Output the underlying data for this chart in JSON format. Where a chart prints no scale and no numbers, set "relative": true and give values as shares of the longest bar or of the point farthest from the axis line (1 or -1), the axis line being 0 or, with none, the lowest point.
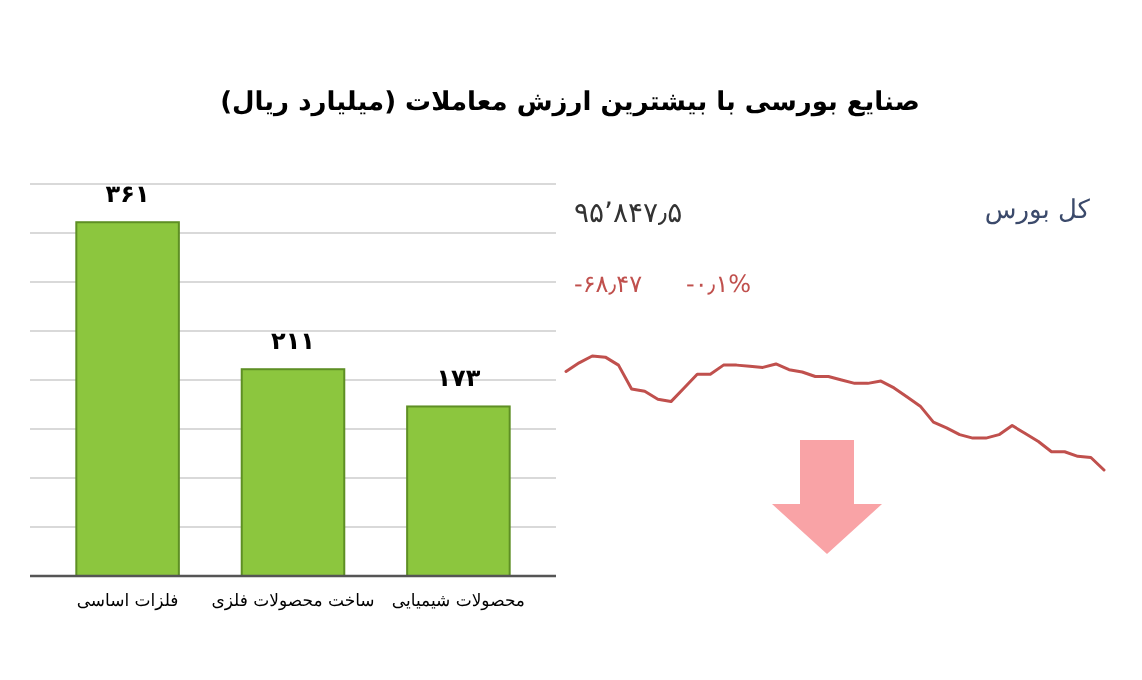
{
  "chart_data": [
    {
      "type": "bar",
      "title": "صنایع بورسی با بیشترین ارزش معاملات  (میلیارد ریال)",
      "categories": [
        "فلزات اساسی",
        "ساخت محصولات فلزی",
        "محصولات شیمیایی"
      ],
      "values": [
        361,
        211,
        173
      ],
      "value_labels": [
        "۳۶۱",
        "۲۱۱",
        "۱۷۳"
      ],
      "color": "#8cc63e",
      "ylim": [
        0,
        400
      ],
      "yticks": [
        {
          "value": 0,
          "label": null
        },
        {
          "value": 50,
          "label": null
        },
        {
          "value": 100,
          "label": null
        },
        {
          "value": 150,
          "label": null
        },
        {
          "value": 200,
          "label": null
        },
        {
          "value": 250,
          "label": null
        },
        {
          "value": 300,
          "label": null
        },
        {
          "value": 350,
          "label": null
        },
        {
          "value": 400,
          "label": null
        }
      ],
      "grid": "y",
      "tick_labels": "x"
    },
    {
      "type": "line",
      "title": "کل بورس",
      "annotations": [
        "۹۵٬۸۴۷٫۵",
        "-۶۸٫۴۷",
        "-۰٫۱%"
      ],
      "relative": true,
      "categories": [
        null,
        null,
        null,
        null,
        null,
        null,
        null,
        null,
        null,
        null,
        null,
        null,
        null,
        null,
        null,
        null,
        null,
        null,
        null,
        null,
        null,
        null,
        null,
        null,
        null,
        null,
        null,
        null,
        null,
        null,
        null,
        null,
        null,
        null,
        null,
        null,
        null,
        null,
        null,
        null,
        null,
        null
      ],
      "color": "#c0504d",
      "values": [
        0.865,
        0.94,
        1,
        0.99,
        0.92,
        0.71,
        0.69,
        0.62,
        0.6,
        0.72,
        0.84,
        0.84,
        0.92,
        0.92,
        0.91,
        0.9,
        0.93,
        0.88,
        0.86,
        0.82,
        0.82,
        0.79,
        0.76,
        0.76,
        0.78,
        0.72,
        0.64,
        0.56,
        0.42,
        0.37,
        0.31,
        0.28,
        0.28,
        0.31,
        0.39,
        0.32,
        0.25,
        0.16,
        0.16,
        0.12,
        0.11,
        0
      ]
    }
  ]
}
